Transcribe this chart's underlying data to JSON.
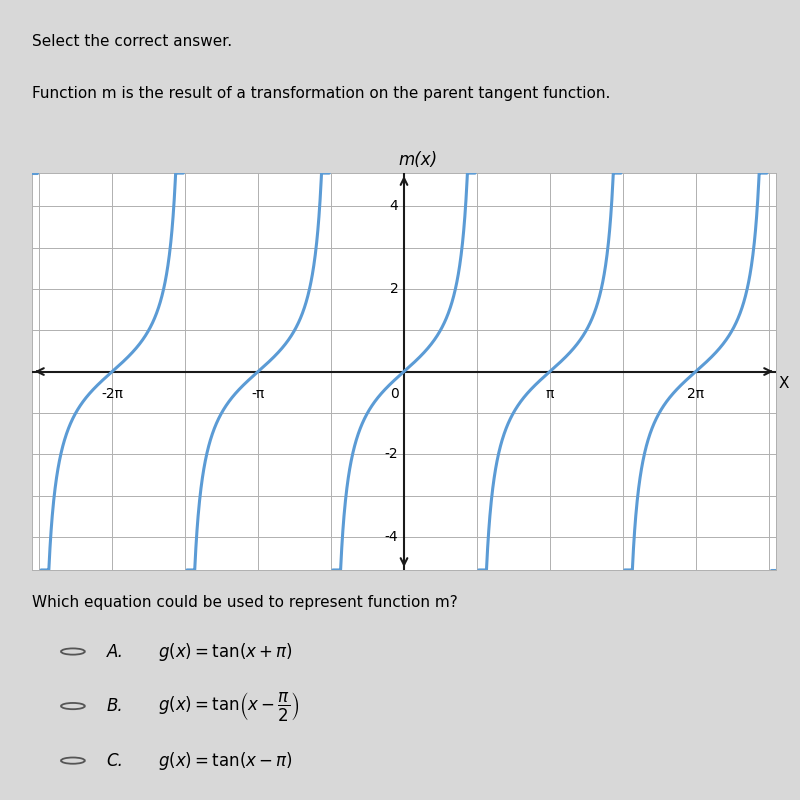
{
  "title_line1": "Select the correct answer.",
  "title_line2": "Function m is the result of a transformation on the parent tangent function.",
  "graph_title": "m(x)",
  "xlabel": "X",
  "xtick_labels": [
    "-2π",
    "-π",
    "0",
    "π",
    "2π"
  ],
  "ytick_labels": [
    "-4",
    "-2",
    "2",
    "4"
  ],
  "ytick_values": [
    -4,
    -2,
    2,
    4
  ],
  "curve_color": "#5b9bd5",
  "bg_color": "#d8d8d8",
  "graph_bg": "#ffffff",
  "grid_color": "#b0b0b0",
  "axis_color": "#1a1a1a",
  "question": "Which equation could be used to represent function m?",
  "choices": [
    [
      "A.",
      "g(ι)  =  tan(ι + π)"
    ],
    [
      "B.",
      "g(ι)  =  tan(ι − π/2)"
    ],
    [
      "C.",
      "g(ι)  =  tan(ι − π)"
    ]
  ],
  "pi": 3.141592653589793
}
